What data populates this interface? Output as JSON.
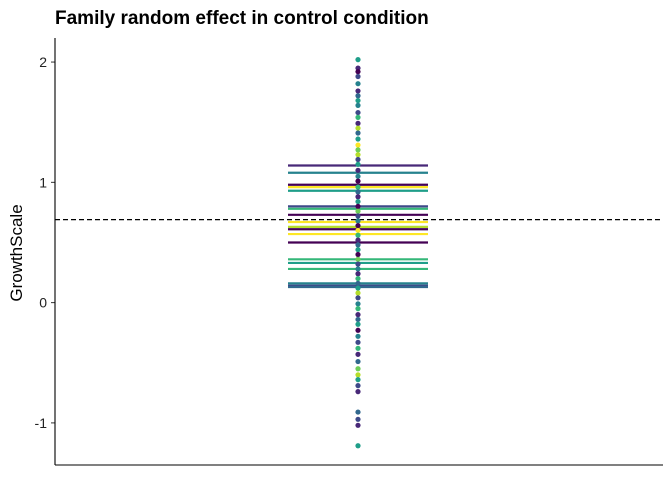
{
  "chart_data": {
    "type": "scatter",
    "title": "Family random effect in control condition",
    "xlabel": "",
    "ylabel": "GrowthScale",
    "ylim": [
      -1.35,
      2.2
    ],
    "y_ticks": [
      -1,
      0,
      1,
      2
    ],
    "y_tick_labels": [
      "-1",
      "0",
      "1",
      "2"
    ],
    "grid": false,
    "legend": "none",
    "reference_line": {
      "y": 0.69,
      "style": "dashed",
      "color": "#000000"
    },
    "palette": [
      "#440154",
      "#482878",
      "#3e4989",
      "#31688e",
      "#26828e",
      "#1f9e89",
      "#35b779",
      "#6ece58",
      "#b5de2b",
      "#fde725"
    ],
    "points": [
      {
        "y": 2.02,
        "c": 5
      },
      {
        "y": 1.95,
        "c": 1
      },
      {
        "y": 1.92,
        "c": 0
      },
      {
        "y": 1.88,
        "c": 2
      },
      {
        "y": 1.82,
        "c": 4
      },
      {
        "y": 1.76,
        "c": 1
      },
      {
        "y": 1.72,
        "c": 3
      },
      {
        "y": 1.68,
        "c": 5
      },
      {
        "y": 1.64,
        "c": 4
      },
      {
        "y": 1.58,
        "c": 2
      },
      {
        "y": 1.54,
        "c": 6
      },
      {
        "y": 1.49,
        "c": 1
      },
      {
        "y": 1.45,
        "c": 8
      },
      {
        "y": 1.41,
        "c": 3
      },
      {
        "y": 1.36,
        "c": 5
      },
      {
        "y": 1.31,
        "c": 9
      },
      {
        "y": 1.27,
        "c": 7
      },
      {
        "y": 1.23,
        "c": 8
      },
      {
        "y": 1.19,
        "c": 2
      },
      {
        "y": 1.15,
        "c": 5
      },
      {
        "y": 1.1,
        "c": 1
      },
      {
        "y": 1.05,
        "c": 4
      },
      {
        "y": 1.01,
        "c": 0
      },
      {
        "y": 0.96,
        "c": 6
      },
      {
        "y": 0.92,
        "c": 3
      },
      {
        "y": 0.88,
        "c": 1
      },
      {
        "y": 0.84,
        "c": 5
      },
      {
        "y": 0.8,
        "c": 0
      },
      {
        "y": 0.76,
        "c": 7
      },
      {
        "y": 0.72,
        "c": 2
      },
      {
        "y": 0.68,
        "c": 4
      },
      {
        "y": 0.64,
        "c": 0
      },
      {
        "y": 0.6,
        "c": 9
      },
      {
        "y": 0.56,
        "c": 6
      },
      {
        "y": 0.52,
        "c": 1
      },
      {
        "y": 0.48,
        "c": 3
      },
      {
        "y": 0.44,
        "c": 5
      },
      {
        "y": 0.4,
        "c": 0
      },
      {
        "y": 0.36,
        "c": 7
      },
      {
        "y": 0.32,
        "c": 2
      },
      {
        "y": 0.28,
        "c": 4
      },
      {
        "y": 0.24,
        "c": 1
      },
      {
        "y": 0.2,
        "c": 6
      },
      {
        "y": 0.16,
        "c": 3
      },
      {
        "y": 0.12,
        "c": 5
      },
      {
        "y": 0.08,
        "c": 8
      },
      {
        "y": 0.04,
        "c": 2
      },
      {
        "y": -0.01,
        "c": 4
      },
      {
        "y": -0.05,
        "c": 6
      },
      {
        "y": -0.1,
        "c": 1
      },
      {
        "y": -0.14,
        "c": 3
      },
      {
        "y": -0.18,
        "c": 5
      },
      {
        "y": -0.23,
        "c": 0
      },
      {
        "y": -0.28,
        "c": 4
      },
      {
        "y": -0.33,
        "c": 2
      },
      {
        "y": -0.38,
        "c": 6
      },
      {
        "y": -0.43,
        "c": 1
      },
      {
        "y": -0.49,
        "c": 3
      },
      {
        "y": -0.55,
        "c": 7
      },
      {
        "y": -0.6,
        "c": 8
      },
      {
        "y": -0.64,
        "c": 5
      },
      {
        "y": -0.69,
        "c": 2
      },
      {
        "y": -0.74,
        "c": 1
      },
      {
        "y": -0.91,
        "c": 3
      },
      {
        "y": -0.97,
        "c": 2
      },
      {
        "y": -1.02,
        "c": 1
      },
      {
        "y": -1.19,
        "c": 5
      }
    ],
    "family_lines": [
      {
        "y": 1.14,
        "c": 1
      },
      {
        "y": 1.08,
        "c": 4
      },
      {
        "y": 0.98,
        "c": 0
      },
      {
        "y": 0.96,
        "c": 9
      },
      {
        "y": 0.93,
        "c": 5
      },
      {
        "y": 0.8,
        "c": 2
      },
      {
        "y": 0.78,
        "c": 6
      },
      {
        "y": 0.73,
        "c": 0
      },
      {
        "y": 0.67,
        "c": 9
      },
      {
        "y": 0.63,
        "c": 8
      },
      {
        "y": 0.61,
        "c": 0
      },
      {
        "y": 0.57,
        "c": 9
      },
      {
        "y": 0.5,
        "c": 0
      },
      {
        "y": 0.36,
        "c": 6
      },
      {
        "y": 0.33,
        "c": 5
      },
      {
        "y": 0.28,
        "c": 6
      },
      {
        "y": 0.16,
        "c": 4
      },
      {
        "y": 0.14,
        "c": 2
      },
      {
        "y": 0.13,
        "c": 3
      }
    ]
  }
}
